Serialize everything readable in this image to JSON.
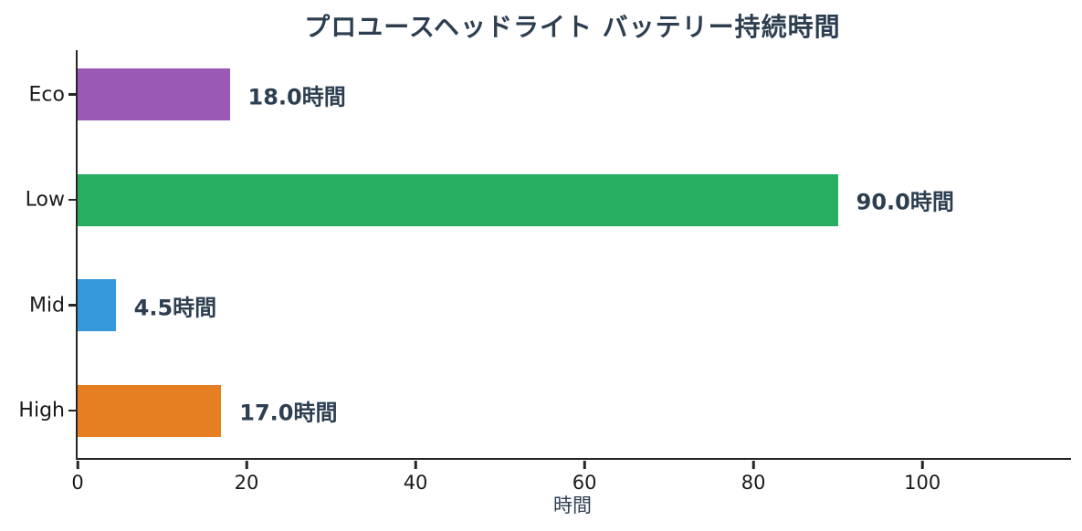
{
  "chart_data": {
    "type": "bar",
    "orientation": "horizontal",
    "title": "プロユースヘッドライト バッテリー持続時間",
    "xlabel": "時間",
    "categories": [
      "Eco",
      "Low",
      "Mid",
      "High"
    ],
    "values": [
      18.0,
      90.0,
      4.5,
      17.0
    ],
    "value_labels": [
      "18.0時間",
      "90.0時間",
      "4.5時間",
      "17.0時間"
    ],
    "bar_colors": [
      "#9b59b6",
      "#27ae60",
      "#3498db",
      "#e67e22"
    ],
    "x_ticks": [
      0,
      20,
      40,
      60,
      80,
      100
    ],
    "xlim": [
      0,
      117.6
    ],
    "grid": false,
    "legend": null,
    "colors": {
      "title_text": "#2c3e50",
      "value_label_text": "#2c3e50",
      "axis_line": "#262626",
      "tick_label_text": "#1a1a1a",
      "background": "#ffffff"
    }
  }
}
